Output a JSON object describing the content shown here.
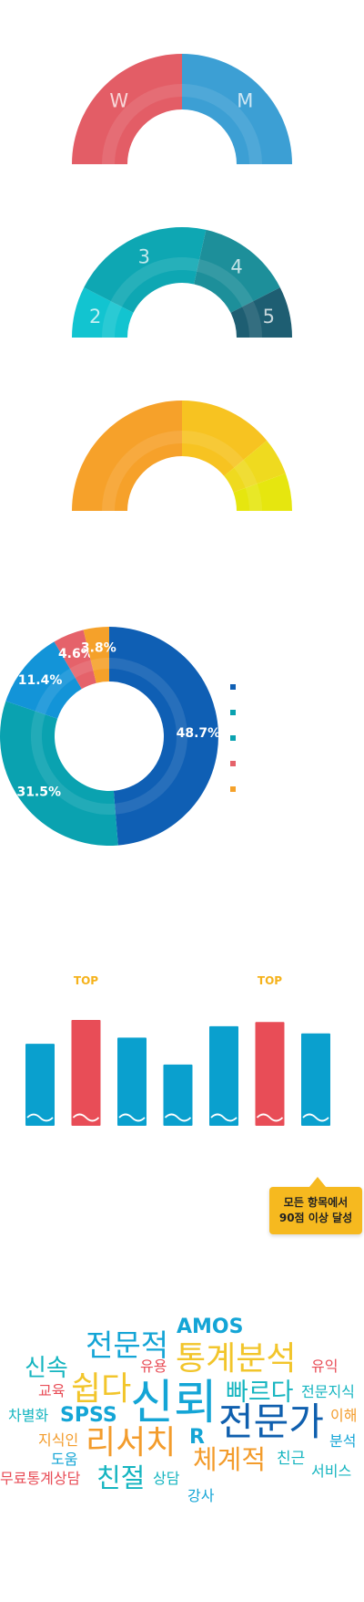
{
  "colors": {
    "blue": "#0aa0ce",
    "red": "#e84d57",
    "navy": "#0f5fae",
    "teal": "#0aa7b3",
    "orange": "#f39c2c",
    "yellow": "#f2c52b",
    "lime": "#e3e11a"
  },
  "gauges": [
    {
      "segments": [
        {
          "label": "W",
          "value": 50,
          "color": "#e35d66"
        },
        {
          "label": "M",
          "value": 50,
          "color": "#3c9fd4"
        }
      ]
    },
    {
      "segments": [
        {
          "label": "2",
          "value": 15,
          "color": "#12c4d0"
        },
        {
          "label": "3",
          "value": 42,
          "color": "#0ea7b3"
        },
        {
          "label": "4",
          "value": 28,
          "color": "#1d8f9a"
        },
        {
          "label": "5",
          "value": 15,
          "color": "#1e5e72"
        }
      ]
    },
    {
      "segments": [
        {
          "label": "",
          "value": 50,
          "color": "#f6a12a"
        },
        {
          "label": "",
          "value": 28,
          "color": "#f7c321"
        },
        {
          "label": "",
          "value": 11,
          "color": "#efda1f"
        },
        {
          "label": "",
          "value": 11,
          "color": "#e6e60f"
        }
      ]
    }
  ],
  "chart_data": [
    {
      "type": "pie",
      "slices": [
        {
          "label": "48.7%",
          "value": 48.7,
          "color": "#0f5fb4"
        },
        {
          "label": "31.5%",
          "value": 31.5,
          "color": "#0aa2b0"
        },
        {
          "label": "11.4%",
          "value": 11.4,
          "color": "#1394d8"
        },
        {
          "label": "4.6%",
          "value": 4.6,
          "color": "#e5626a"
        },
        {
          "label": "3.8%",
          "value": 3.8,
          "color": "#f5a12a"
        }
      ],
      "legend_colors": [
        "#0f5fb4",
        "#0aa2b0",
        "#0aa2b0",
        "#e5626a",
        "#f5a12a"
      ]
    },
    {
      "type": "bar",
      "values": [
        79,
        102,
        85,
        59,
        96,
        100,
        89
      ],
      "ylim": [
        0,
        102
      ],
      "colors": [
        "#0aa0ce",
        "#e84d57",
        "#0aa0ce",
        "#0aa0ce",
        "#0aa0ce",
        "#e84d57",
        "#0aa0ce"
      ],
      "top_labels": [
        "",
        "TOP",
        "",
        "",
        "",
        "TOP",
        ""
      ]
    }
  ],
  "callout": {
    "line1": "모든 항목에서",
    "line2": "90점 이상 달성"
  },
  "word_cloud": [
    {
      "text": "AMOS",
      "color": "#14a5d6",
      "size": 22,
      "bold": true
    },
    {
      "text": "전문적",
      "color": "#14a5d6",
      "size": 33
    },
    {
      "text": "통계분석",
      "color": "#f2c52b",
      "size": 36
    },
    {
      "text": "신속",
      "color": "#15b5c0",
      "size": 26
    },
    {
      "text": "유용",
      "color": "#e84d57",
      "size": 16
    },
    {
      "text": "유익",
      "color": "#e84d57",
      "size": 16
    },
    {
      "text": "쉽다",
      "color": "#f2c52b",
      "size": 36
    },
    {
      "text": "신뢰",
      "color": "#14a5d6",
      "size": 52
    },
    {
      "text": "교육",
      "color": "#e84d57",
      "size": 16
    },
    {
      "text": "빠르다",
      "color": "#15b5c0",
      "size": 27
    },
    {
      "text": "전문지식",
      "color": "#15b5c0",
      "size": 16
    },
    {
      "text": "차별화",
      "color": "#15b5c0",
      "size": 16
    },
    {
      "text": "SPSS",
      "color": "#14a5d6",
      "size": 22,
      "bold": true
    },
    {
      "text": "전문가",
      "color": "#0f5fae",
      "size": 42
    },
    {
      "text": "이해",
      "color": "#f39c2c",
      "size": 16
    },
    {
      "text": "지식인",
      "color": "#f39c2c",
      "size": 16
    },
    {
      "text": "리서치",
      "color": "#f39c2c",
      "size": 36
    },
    {
      "text": "R",
      "color": "#14a5d6",
      "size": 22,
      "bold": true
    },
    {
      "text": "분석",
      "color": "#14a5d6",
      "size": 16
    },
    {
      "text": "도움",
      "color": "#14a5d6",
      "size": 16
    },
    {
      "text": "체계적",
      "color": "#f39c2c",
      "size": 29
    },
    {
      "text": "친근",
      "color": "#15b5c0",
      "size": 17
    },
    {
      "text": "무료통계상담",
      "color": "#e84d57",
      "size": 16
    },
    {
      "text": "친절",
      "color": "#15b5c0",
      "size": 29
    },
    {
      "text": "상담",
      "color": "#15b5c0",
      "size": 16
    },
    {
      "text": "서비스",
      "color": "#15b5c0",
      "size": 16
    },
    {
      "text": "강사",
      "color": "#14a5d6",
      "size": 16
    }
  ]
}
